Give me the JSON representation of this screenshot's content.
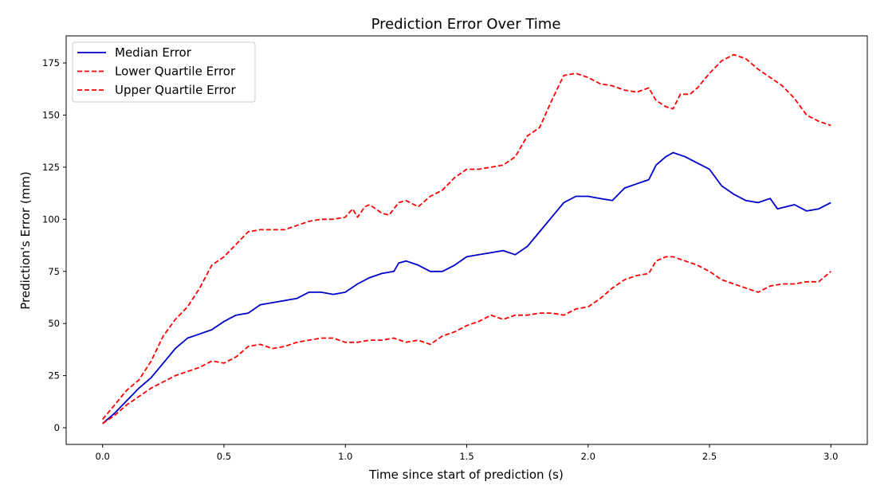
{
  "chart_data": {
    "type": "line",
    "title": "Prediction Error Over Time",
    "xlabel": "Time since start of prediction (s)",
    "ylabel": "Prediction's Error (mm)",
    "xlim": [
      -0.15,
      3.15
    ],
    "ylim": [
      -8,
      188
    ],
    "xticks": [
      0.0,
      0.5,
      1.0,
      1.5,
      2.0,
      2.5,
      3.0
    ],
    "xtick_labels": [
      "0.0",
      "0.5",
      "1.0",
      "1.5",
      "2.0",
      "2.5",
      "3.0"
    ],
    "yticks": [
      0,
      25,
      50,
      75,
      100,
      125,
      150,
      175
    ],
    "ytick_labels": [
      "0",
      "25",
      "50",
      "75",
      "100",
      "125",
      "150",
      "175"
    ],
    "grid": false,
    "legend_position": "top-left",
    "series": [
      {
        "name": "Median Error",
        "color": "#0000cc",
        "style": "solid",
        "points": [
          [
            0.0,
            2
          ],
          [
            0.05,
            7
          ],
          [
            0.1,
            13
          ],
          [
            0.15,
            19
          ],
          [
            0.2,
            24
          ],
          [
            0.25,
            31
          ],
          [
            0.3,
            38
          ],
          [
            0.35,
            43
          ],
          [
            0.4,
            45
          ],
          [
            0.45,
            47
          ],
          [
            0.5,
            51
          ],
          [
            0.55,
            54
          ],
          [
            0.6,
            55
          ],
          [
            0.65,
            59
          ],
          [
            0.7,
            60
          ],
          [
            0.75,
            61
          ],
          [
            0.8,
            62
          ],
          [
            0.85,
            65
          ],
          [
            0.9,
            65
          ],
          [
            0.95,
            64
          ],
          [
            1.0,
            65
          ],
          [
            1.05,
            69
          ],
          [
            1.1,
            72
          ],
          [
            1.15,
            74
          ],
          [
            1.2,
            75
          ],
          [
            1.22,
            79
          ],
          [
            1.25,
            80
          ],
          [
            1.3,
            78
          ],
          [
            1.35,
            75
          ],
          [
            1.4,
            75
          ],
          [
            1.45,
            78
          ],
          [
            1.5,
            82
          ],
          [
            1.55,
            83
          ],
          [
            1.6,
            84
          ],
          [
            1.65,
            85
          ],
          [
            1.7,
            83
          ],
          [
            1.75,
            87
          ],
          [
            1.8,
            94
          ],
          [
            1.85,
            101
          ],
          [
            1.9,
            108
          ],
          [
            1.95,
            111
          ],
          [
            2.0,
            111
          ],
          [
            2.05,
            110
          ],
          [
            2.1,
            109
          ],
          [
            2.15,
            115
          ],
          [
            2.2,
            117
          ],
          [
            2.25,
            119
          ],
          [
            2.28,
            126
          ],
          [
            2.32,
            130
          ],
          [
            2.35,
            132
          ],
          [
            2.4,
            130
          ],
          [
            2.45,
            127
          ],
          [
            2.5,
            124
          ],
          [
            2.55,
            116
          ],
          [
            2.6,
            112
          ],
          [
            2.65,
            109
          ],
          [
            2.7,
            108
          ],
          [
            2.75,
            110
          ],
          [
            2.78,
            105
          ],
          [
            2.85,
            107
          ],
          [
            2.9,
            104
          ],
          [
            2.95,
            105
          ],
          [
            3.0,
            108
          ]
        ]
      },
      {
        "name": "Lower Quartile Error",
        "color": "#ff0000",
        "style": "dashed",
        "points": [
          [
            0.0,
            2
          ],
          [
            0.05,
            6
          ],
          [
            0.1,
            11
          ],
          [
            0.15,
            15
          ],
          [
            0.2,
            19
          ],
          [
            0.25,
            22
          ],
          [
            0.3,
            25
          ],
          [
            0.35,
            27
          ],
          [
            0.4,
            29
          ],
          [
            0.45,
            32
          ],
          [
            0.5,
            31
          ],
          [
            0.55,
            34
          ],
          [
            0.6,
            39
          ],
          [
            0.65,
            40
          ],
          [
            0.7,
            38
          ],
          [
            0.75,
            39
          ],
          [
            0.8,
            41
          ],
          [
            0.85,
            42
          ],
          [
            0.9,
            43
          ],
          [
            0.95,
            43
          ],
          [
            1.0,
            41
          ],
          [
            1.05,
            41
          ],
          [
            1.1,
            42
          ],
          [
            1.15,
            42
          ],
          [
            1.2,
            43
          ],
          [
            1.25,
            41
          ],
          [
            1.3,
            42
          ],
          [
            1.35,
            40
          ],
          [
            1.4,
            44
          ],
          [
            1.45,
            46
          ],
          [
            1.5,
            49
          ],
          [
            1.55,
            51
          ],
          [
            1.6,
            54
          ],
          [
            1.65,
            52
          ],
          [
            1.7,
            54
          ],
          [
            1.75,
            54
          ],
          [
            1.8,
            55
          ],
          [
            1.85,
            55
          ],
          [
            1.9,
            54
          ],
          [
            1.95,
            57
          ],
          [
            2.0,
            58
          ],
          [
            2.05,
            62
          ],
          [
            2.1,
            67
          ],
          [
            2.15,
            71
          ],
          [
            2.2,
            73
          ],
          [
            2.25,
            74
          ],
          [
            2.28,
            80
          ],
          [
            2.32,
            82
          ],
          [
            2.35,
            82
          ],
          [
            2.4,
            80
          ],
          [
            2.45,
            78
          ],
          [
            2.5,
            75
          ],
          [
            2.55,
            71
          ],
          [
            2.6,
            69
          ],
          [
            2.65,
            67
          ],
          [
            2.7,
            65
          ],
          [
            2.75,
            68
          ],
          [
            2.8,
            69
          ],
          [
            2.85,
            69
          ],
          [
            2.9,
            70
          ],
          [
            2.95,
            70
          ],
          [
            3.0,
            75
          ]
        ]
      },
      {
        "name": "Upper Quartile Error",
        "color": "#ff0000",
        "style": "dashed",
        "points": [
          [
            0.0,
            4
          ],
          [
            0.05,
            11
          ],
          [
            0.1,
            18
          ],
          [
            0.15,
            23
          ],
          [
            0.2,
            32
          ],
          [
            0.25,
            44
          ],
          [
            0.3,
            52
          ],
          [
            0.35,
            58
          ],
          [
            0.4,
            67
          ],
          [
            0.45,
            78
          ],
          [
            0.5,
            82
          ],
          [
            0.55,
            88
          ],
          [
            0.6,
            94
          ],
          [
            0.65,
            95
          ],
          [
            0.7,
            95
          ],
          [
            0.75,
            95
          ],
          [
            0.8,
            97
          ],
          [
            0.85,
            99
          ],
          [
            0.9,
            100
          ],
          [
            0.95,
            100
          ],
          [
            1.0,
            101
          ],
          [
            1.03,
            105
          ],
          [
            1.05,
            101
          ],
          [
            1.08,
            106
          ],
          [
            1.1,
            107
          ],
          [
            1.15,
            103
          ],
          [
            1.18,
            102
          ],
          [
            1.22,
            108
          ],
          [
            1.25,
            109
          ],
          [
            1.3,
            106
          ],
          [
            1.35,
            111
          ],
          [
            1.4,
            114
          ],
          [
            1.45,
            120
          ],
          [
            1.5,
            124
          ],
          [
            1.55,
            124
          ],
          [
            1.6,
            125
          ],
          [
            1.65,
            126
          ],
          [
            1.7,
            130
          ],
          [
            1.75,
            140
          ],
          [
            1.8,
            144
          ],
          [
            1.85,
            157
          ],
          [
            1.9,
            169
          ],
          [
            1.95,
            170
          ],
          [
            2.0,
            168
          ],
          [
            2.05,
            165
          ],
          [
            2.1,
            164
          ],
          [
            2.15,
            162
          ],
          [
            2.2,
            161
          ],
          [
            2.25,
            163
          ],
          [
            2.28,
            157
          ],
          [
            2.32,
            154
          ],
          [
            2.35,
            153
          ],
          [
            2.38,
            160
          ],
          [
            2.42,
            160
          ],
          [
            2.45,
            163
          ],
          [
            2.5,
            170
          ],
          [
            2.55,
            176
          ],
          [
            2.6,
            179
          ],
          [
            2.65,
            177
          ],
          [
            2.7,
            172
          ],
          [
            2.75,
            168
          ],
          [
            2.8,
            164
          ],
          [
            2.85,
            158
          ],
          [
            2.9,
            150
          ],
          [
            2.95,
            147
          ],
          [
            3.0,
            145
          ]
        ]
      }
    ]
  }
}
